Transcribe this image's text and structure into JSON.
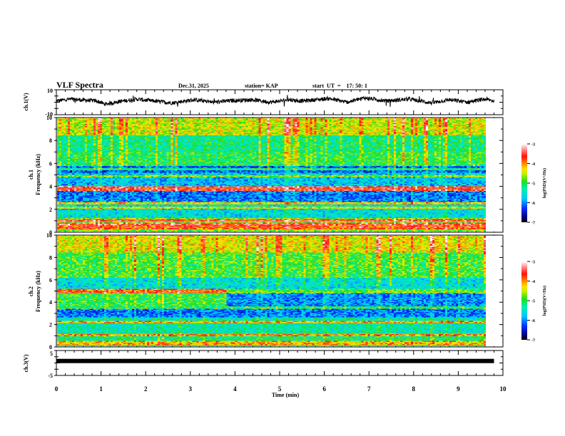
{
  "header": {
    "title": "VLF Spectra",
    "date": "Dec.31, 2025",
    "station": "station= KAP",
    "start": "start  UT  =    17: 50: 1"
  },
  "chart_data": [
    {
      "type": "line",
      "name": "ch1-waveform",
      "ylabel": "ch.1(V)",
      "ylim": [
        -10,
        10
      ],
      "yticks": [
        "10",
        "-10"
      ],
      "xlim": [
        0,
        10
      ],
      "data_end_min": 9.8,
      "description": "noisy waveform oscillating roughly between -3 and 4 V with ~1 min quasi-periodic swings",
      "approx_envelope": [
        [
          0,
          1
        ],
        [
          0.3,
          2.5
        ],
        [
          0.9,
          1
        ],
        [
          1.1,
          -1.5
        ],
        [
          1.4,
          0.5
        ],
        [
          1.8,
          2.5
        ],
        [
          2.3,
          0.5
        ],
        [
          2.6,
          -0.5
        ],
        [
          3.1,
          2
        ],
        [
          3.5,
          0
        ],
        [
          4.0,
          1.5
        ],
        [
          4.4,
          2
        ],
        [
          4.8,
          0
        ],
        [
          5.2,
          2
        ],
        [
          5.5,
          1
        ],
        [
          6.1,
          3
        ],
        [
          6.5,
          0
        ],
        [
          6.9,
          3.5
        ],
        [
          7.4,
          1
        ],
        [
          7.9,
          2.5
        ],
        [
          8.4,
          -0.5
        ],
        [
          8.8,
          2
        ],
        [
          9.2,
          0
        ],
        [
          9.6,
          2.5
        ],
        [
          9.8,
          1
        ]
      ]
    },
    {
      "type": "heatmap",
      "name": "ch1-spectrogram",
      "ylabel": "ch.1 Frequency (kHz)",
      "xlabel": "",
      "xlim": [
        0,
        10
      ],
      "ylim": [
        0,
        10
      ],
      "yticks": [
        "0",
        "2",
        "4",
        "6",
        "8",
        "10"
      ],
      "data_end_min": 9.8,
      "colorbar": {
        "label": "log(PSD)(V²/Hz)",
        "range": [
          -7,
          -3
        ],
        "ticks": [
          "-3",
          "-4",
          "-5",
          "-6",
          "-7"
        ]
      },
      "bands": [
        {
          "f_khz": [
            8.5,
            10
          ],
          "log_psd": -4.6
        },
        {
          "f_khz": [
            7.0,
            8.5
          ],
          "log_psd": -5.3
        },
        {
          "f_khz": [
            5.8,
            7.0
          ],
          "log_psd": -5.1
        },
        {
          "f_khz": [
            5.2,
            5.8
          ],
          "log_psd": -6.2
        },
        {
          "f_khz": [
            4.0,
            5.2
          ],
          "log_psd": -5.8
        },
        {
          "f_khz": [
            3.6,
            4.0
          ],
          "log_psd": -4.6
        },
        {
          "f_khz": [
            2.6,
            3.6
          ],
          "log_psd": -6.1
        },
        {
          "f_khz": [
            1.2,
            2.6
          ],
          "log_psd": -5.6
        },
        {
          "f_khz": [
            0,
            1.2
          ],
          "log_psd": -4.8
        }
      ],
      "narrowband_lines_khz": [
        0.3,
        0.5,
        0.7,
        1.0,
        2.1,
        2.5,
        3.7,
        3.9,
        4.9,
        5.5
      ]
    },
    {
      "type": "heatmap",
      "name": "ch2-spectrogram",
      "ylabel": "ch.2 Frequency (kHz)",
      "xlim": [
        0,
        10
      ],
      "ylim": [
        0,
        10
      ],
      "yticks": [
        "0",
        "2",
        "4",
        "6",
        "8",
        "10"
      ],
      "data_end_min": 9.8,
      "colorbar": {
        "label": "log(PSD)(V²/Hz)",
        "range": [
          -7,
          -3
        ],
        "ticks": [
          "-3",
          "-4",
          "-5",
          "-6",
          "-7"
        ]
      },
      "regime_change_min": 3.85,
      "bands": [
        {
          "f_khz": [
            8.5,
            10
          ],
          "log_psd": -4.5
        },
        {
          "f_khz": [
            6.2,
            8.5
          ],
          "log_psd": -5.0
        },
        {
          "f_khz": [
            5.2,
            6.2
          ],
          "log_psd": -5.6
        },
        {
          "f_khz": [
            3.6,
            5.2
          ],
          "log_psd": -5.0,
          "after_change_log_psd": -6.0
        },
        {
          "f_khz": [
            2.6,
            3.6
          ],
          "log_psd": -6.1
        },
        {
          "f_khz": [
            1.2,
            2.6
          ],
          "log_psd": -5.4
        },
        {
          "f_khz": [
            0,
            1.2
          ],
          "log_psd": -5.2
        }
      ],
      "narrowband_lines_khz": [
        0.2,
        0.4,
        1.0,
        2.2,
        3.5,
        4.9,
        5.1
      ]
    },
    {
      "type": "line",
      "name": "ch3-waveform",
      "ylabel": "ch.3(V)",
      "ylim": [
        -5,
        5
      ],
      "yticks": [
        "5",
        "-5"
      ],
      "xlim": [
        0,
        10
      ],
      "xlabel": "Time (min)",
      "xticks": [
        "0",
        "1",
        "2",
        "3",
        "4",
        "5",
        "6",
        "7",
        "8",
        "9",
        "10"
      ],
      "data_end_min": 9.8,
      "approx_value_v": 0.8,
      "thickness_v": 0.6
    }
  ]
}
